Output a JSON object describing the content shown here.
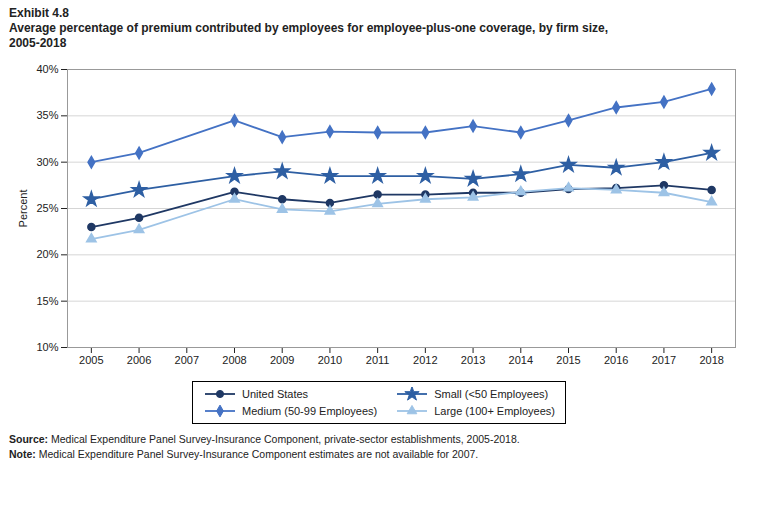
{
  "chart_data": {
    "type": "line",
    "title": "Exhibit 4.8",
    "subtitle": [
      "Average percentage of premium contributed by employees for employee-plus-one coverage, by firm size,",
      "2005-2018"
    ],
    "ylabel": "Percent",
    "x": [
      2005,
      2006,
      2008,
      2009,
      2010,
      2011,
      2012,
      2013,
      2014,
      2015,
      2016,
      2017,
      2018
    ],
    "xlim": [
      2004.5,
      2018.5
    ],
    "xticks": [
      2005,
      2006,
      2007,
      2008,
      2009,
      2010,
      2011,
      2012,
      2013,
      2014,
      2015,
      2016,
      2017,
      2018
    ],
    "ylim": [
      10,
      40
    ],
    "yticks": [
      {
        "value": 10,
        "label": "10%"
      },
      {
        "value": 15,
        "label": "15%"
      },
      {
        "value": 20,
        "label": "20%"
      },
      {
        "value": 25,
        "label": "25%"
      },
      {
        "value": 30,
        "label": "30%"
      },
      {
        "value": 35,
        "label": "35%"
      },
      {
        "value": 40,
        "label": "40%"
      }
    ],
    "grid": true,
    "legend": "bottom",
    "series": [
      {
        "name": "United States",
        "color": "#1f3864",
        "marker": "circle",
        "values": [
          23.0,
          24.0,
          26.8,
          26.0,
          25.6,
          26.5,
          26.5,
          26.7,
          26.7,
          27.1,
          27.2,
          27.5,
          27.0
        ]
      },
      {
        "name": "Small (<50 Employees)",
        "color": "#2e5fa3",
        "marker": "star",
        "values": [
          26.0,
          27.0,
          28.5,
          29.0,
          28.5,
          28.5,
          28.5,
          28.2,
          28.7,
          29.7,
          29.4,
          30.0,
          31.0
        ]
      },
      {
        "name": "Medium (50-99 Employees)",
        "color": "#4472c4",
        "marker": "diamond",
        "values": [
          30.0,
          31.0,
          34.5,
          32.7,
          33.3,
          33.2,
          33.2,
          33.9,
          33.2,
          34.5,
          35.9,
          36.5,
          37.9
        ]
      },
      {
        "name": "Large (100+ Employees)",
        "color": "#9dc3e6",
        "marker": "triangle",
        "values": [
          21.7,
          22.7,
          26.0,
          24.9,
          24.7,
          25.5,
          26.0,
          26.2,
          26.8,
          27.2,
          27.0,
          26.7,
          25.7
        ]
      }
    ],
    "annotations": [
      "Source: Medical Expenditure Panel Survey-Insurance Component, private-sector establishments, 2005-2018.",
      "Note: Medical Expenditure Panel Survey-Insurance Component estimates are not available for 2007."
    ]
  }
}
